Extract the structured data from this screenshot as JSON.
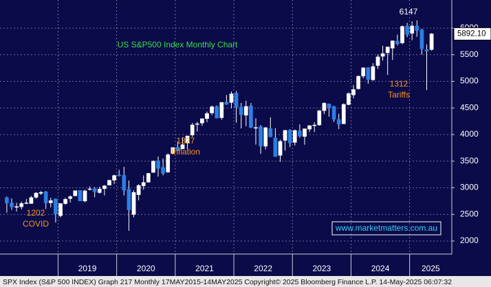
{
  "chart_data": {
    "type": "candlestick",
    "title": "US S&P500 Index Monthly Chart",
    "categories": [
      null,
      null,
      null,
      null,
      null,
      null,
      null,
      null,
      null,
      null,
      null,
      null,
      null,
      null,
      null,
      null,
      null,
      null,
      null,
      null,
      null,
      null,
      null,
      null,
      null,
      null,
      null,
      null,
      null,
      null,
      null,
      null,
      null,
      null,
      null,
      null,
      null,
      null,
      null,
      null,
      null,
      null,
      null,
      null,
      null,
      null,
      null,
      null,
      null,
      null,
      null,
      null,
      null,
      null,
      null,
      null,
      null,
      null,
      null,
      null,
      null,
      null,
      null,
      null,
      null,
      null,
      null,
      null,
      null,
      null,
      null,
      null,
      null,
      null,
      null,
      null,
      null,
      null,
      null,
      null,
      null,
      null,
      null,
      null,
      null,
      null,
      null,
      null
    ],
    "open": [
      2816,
      2715,
      2633,
      2643,
      2718,
      2704,
      2821,
      2896,
      2926,
      2717,
      2790,
      2476,
      2703,
      2798,
      2848,
      2952,
      2751,
      2971,
      2980,
      2910,
      2983,
      3050,
      3143,
      3244,
      3235,
      2974,
      2498,
      2869,
      3038,
      3105,
      3289,
      3508,
      3385,
      3296,
      3645,
      3764,
      3731,
      3842,
      3992,
      4192,
      4217,
      4300,
      4406,
      4529,
      4317,
      4610,
      4602,
      4778,
      4519,
      4363,
      4540,
      4130,
      4150,
      3781,
      4113,
      3937,
      3610,
      3891,
      4087,
      3853,
      4070,
      3964,
      4102,
      4166,
      4181,
      4450,
      4578,
      4530,
      4284,
      4202,
      4564,
      4745,
      4861,
      5098,
      5258,
      5029,
      5297,
      5471,
      5537,
      5624,
      5757,
      5723,
      6040,
      5903,
      6041,
      5969,
      5597,
      5597
    ],
    "high": [
      2835,
      2801,
      2718,
      2742,
      2791,
      2848,
      2916,
      2941,
      2940,
      2815,
      2800,
      2708,
      2813,
      2860,
      2949,
      2955,
      2964,
      3028,
      3014,
      3022,
      3050,
      3154,
      3248,
      3337,
      3394,
      3137,
      2955,
      3068,
      3233,
      3280,
      3515,
      3588,
      3550,
      3646,
      3760,
      3870,
      3950,
      3983,
      4219,
      4238,
      4302,
      4430,
      4546,
      4546,
      4608,
      4744,
      4809,
      4819,
      4595,
      4637,
      4593,
      4307,
      4178,
      4140,
      4325,
      4120,
      3906,
      4080,
      4101,
      4095,
      4195,
      4110,
      4170,
      4231,
      4458,
      4607,
      4584,
      4541,
      4393,
      4587,
      4793,
      4932,
      5111,
      5265,
      5264,
      5342,
      5506,
      5669,
      5651,
      5768,
      5878,
      6053,
      6100,
      6128,
      6147,
      5987,
      5695,
      5907
    ],
    "low": [
      2533,
      2586,
      2553,
      2594,
      2691,
      2698,
      2796,
      2864,
      2603,
      2631,
      2347,
      2444,
      2681,
      2722,
      2848,
      2750,
      2729,
      2952,
      2822,
      2891,
      2855,
      3050,
      3070,
      3214,
      2855,
      2192,
      2447,
      2766,
      2965,
      3101,
      3280,
      3210,
      3234,
      3280,
      3633,
      3694,
      3725,
      3723,
      3955,
      4056,
      4164,
      4233,
      4368,
      4306,
      4279,
      4560,
      4495,
      4222,
      4115,
      4157,
      4124,
      3811,
      3637,
      3721,
      3955,
      3585,
      3491,
      3699,
      3764,
      3794,
      3944,
      3809,
      4049,
      4048,
      4166,
      4385,
      4335,
      4238,
      4103,
      4197,
      4547,
      4683,
      4846,
      5057,
      4954,
      5011,
      5234,
      5390,
      5120,
      5402,
      5675,
      5697,
      5832,
      5773,
      5837,
      5505,
      4835,
      5578
    ],
    "close": [
      2714,
      2641,
      2648,
      2705,
      2718,
      2816,
      2902,
      2914,
      2712,
      2760,
      2507,
      2704,
      2784,
      2834,
      2946,
      2752,
      2942,
      2980,
      2926,
      2977,
      3038,
      3141,
      3231,
      3226,
      2954,
      2585,
      2912,
      3044,
      3100,
      3271,
      3500,
      3363,
      3270,
      3622,
      3756,
      3714,
      3811,
      3973,
      4181,
      4204,
      4298,
      4395,
      4523,
      4308,
      4605,
      4567,
      4766,
      4516,
      4374,
      4530,
      4132,
      4132,
      3785,
      4130,
      3955,
      3586,
      3872,
      4080,
      3840,
      4077,
      3970,
      4109,
      4169,
      4180,
      4450,
      4589,
      4508,
      4288,
      4194,
      4568,
      4770,
      4846,
      5096,
      5254,
      5036,
      5278,
      5460,
      5522,
      5648,
      5762,
      5705,
      6032,
      5882,
      6041,
      5955,
      5612,
      5569,
      5892
    ],
    "up_color": "#ffffff",
    "down_color": "#2b7fe3",
    "xticks": [
      {
        "value": 11,
        "label": "2019"
      },
      {
        "value": 23,
        "label": "2020"
      },
      {
        "value": 35,
        "label": "2021"
      },
      {
        "value": 47,
        "label": "2022"
      },
      {
        "value": 59,
        "label": "2023"
      },
      {
        "value": 71,
        "label": "2024"
      },
      {
        "value": 83,
        "label": "2025"
      }
    ],
    "ylim": [
      1755,
      6529
    ],
    "yticks": [
      2000,
      2500,
      3000,
      3500,
      4000,
      4500,
      5000,
      5500,
      6000
    ],
    "grid": true,
    "last_price_label": "5892.10",
    "annotations": [
      {
        "lines": [
          "6147"
        ],
        "color": "#ffffff"
      },
      {
        "lines": [
          "1202",
          "COVID"
        ],
        "color": "#f7931e"
      },
      {
        "lines": [
          "1327",
          "Inflation"
        ],
        "color": "#f7931e"
      },
      {
        "lines": [
          "1312",
          "Tariffs"
        ],
        "color": "#f7931e"
      }
    ],
    "watermark": "www.marketmatters.com.au",
    "footer": "SPX Index (S&P 500 INDEX) Graph 217  Monthly 17MAY2015-14MAY2025 Copyright© 2025 Bloomberg Finance L.P.  14-May-2025 06:07:32"
  }
}
